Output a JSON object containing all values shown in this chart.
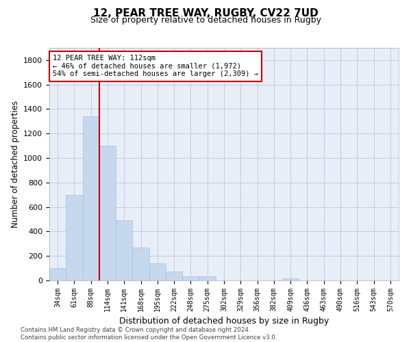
{
  "title1": "12, PEAR TREE WAY, RUGBY, CV22 7UD",
  "title2": "Size of property relative to detached houses in Rugby",
  "xlabel": "Distribution of detached houses by size in Rugby",
  "ylabel": "Number of detached properties",
  "bar_color": "#c5d8ee",
  "bar_edgecolor": "#a8c0de",
  "grid_color": "#b8c8dc",
  "background_color": "#e8eef8",
  "categories": [
    "34sqm",
    "61sqm",
    "88sqm",
    "114sqm",
    "141sqm",
    "168sqm",
    "195sqm",
    "222sqm",
    "248sqm",
    "275sqm",
    "302sqm",
    "329sqm",
    "356sqm",
    "382sqm",
    "409sqm",
    "436sqm",
    "463sqm",
    "490sqm",
    "516sqm",
    "543sqm",
    "570sqm"
  ],
  "values": [
    100,
    700,
    1340,
    1100,
    490,
    270,
    140,
    70,
    35,
    35,
    0,
    0,
    0,
    0,
    15,
    0,
    0,
    0,
    0,
    0,
    0
  ],
  "vline_x": 3,
  "annotation_text": "12 PEAR TREE WAY: 112sqm\n← 46% of detached houses are smaller (1,972)\n54% of semi-detached houses are larger (2,309) →",
  "annotation_box_color": "#ffffff",
  "annotation_box_edgecolor": "#cc0000",
  "vline_color": "#cc0000",
  "ylim": [
    0,
    1900
  ],
  "yticks": [
    0,
    200,
    400,
    600,
    800,
    1000,
    1200,
    1400,
    1600,
    1800
  ],
  "footnote": "Contains HM Land Registry data © Crown copyright and database right 2024.\nContains public sector information licensed under the Open Government Licence v3.0."
}
